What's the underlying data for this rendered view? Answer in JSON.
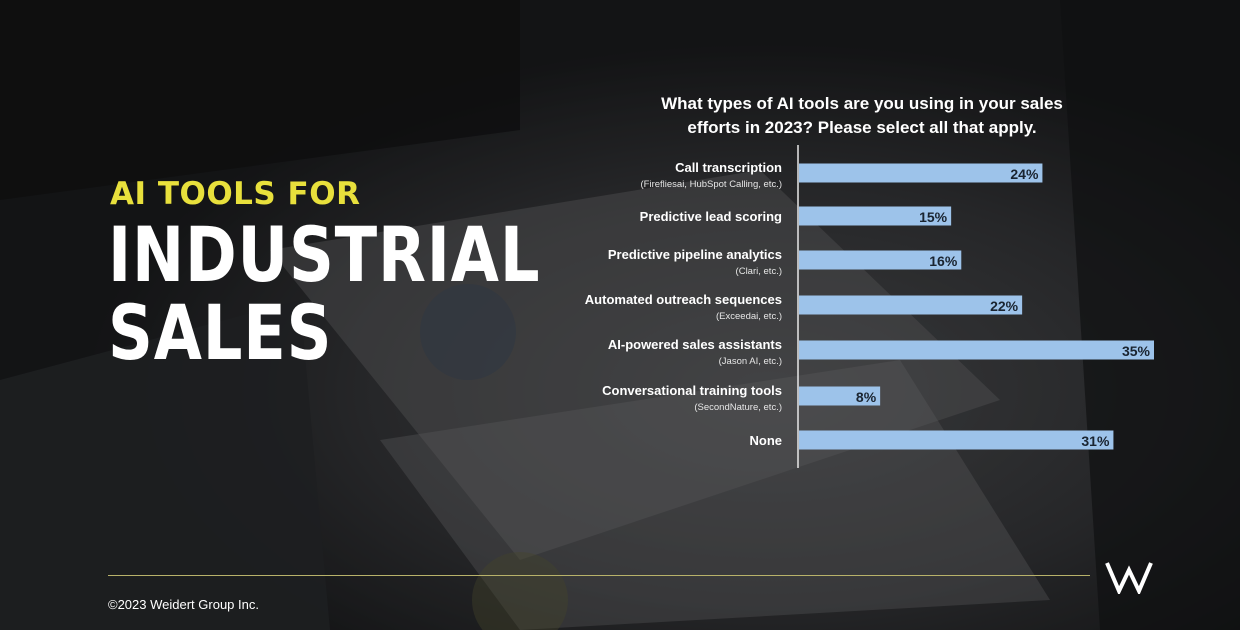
{
  "colors": {
    "accent": "#e8e03c",
    "bar": "#9dc3ea",
    "text": "#ffffff",
    "bar_text": "#1a2430",
    "footer_rule": "#b8b26a"
  },
  "slide": {
    "kicker": "AI TOOLS FOR",
    "headline_line1": "INDUSTRIAL",
    "headline_line2": "SALES"
  },
  "footer": {
    "copyright": "©2023 Weidert Group Inc.",
    "logo": "weidert-w-logo"
  },
  "chart_data": {
    "type": "bar",
    "orientation": "horizontal",
    "title_lines": [
      "What types of AI tools are you using in your sales",
      "efforts in 2023? Please select all that apply."
    ],
    "categories": [
      "Call transcription",
      "Predictive lead scoring",
      "Predictive pipeline analytics",
      "Automated outreach sequences",
      "AI-powered sales assistants",
      "Conversational training tools",
      "None"
    ],
    "subtitles": [
      "(Firefliesai, HubSpot Calling, etc.)",
      "",
      "(Clari, etc.)",
      "(Exceedai, etc.)",
      "(Jason AI, etc.)",
      "(SecondNature, etc.)",
      ""
    ],
    "values": [
      24,
      15,
      16,
      22,
      35,
      8,
      31
    ],
    "value_labels": [
      "24%",
      "15%",
      "16%",
      "22%",
      "35%",
      "8%",
      "31%"
    ],
    "unit": "%",
    "xlim": [
      0,
      35
    ],
    "grid": false,
    "legend": "none"
  }
}
